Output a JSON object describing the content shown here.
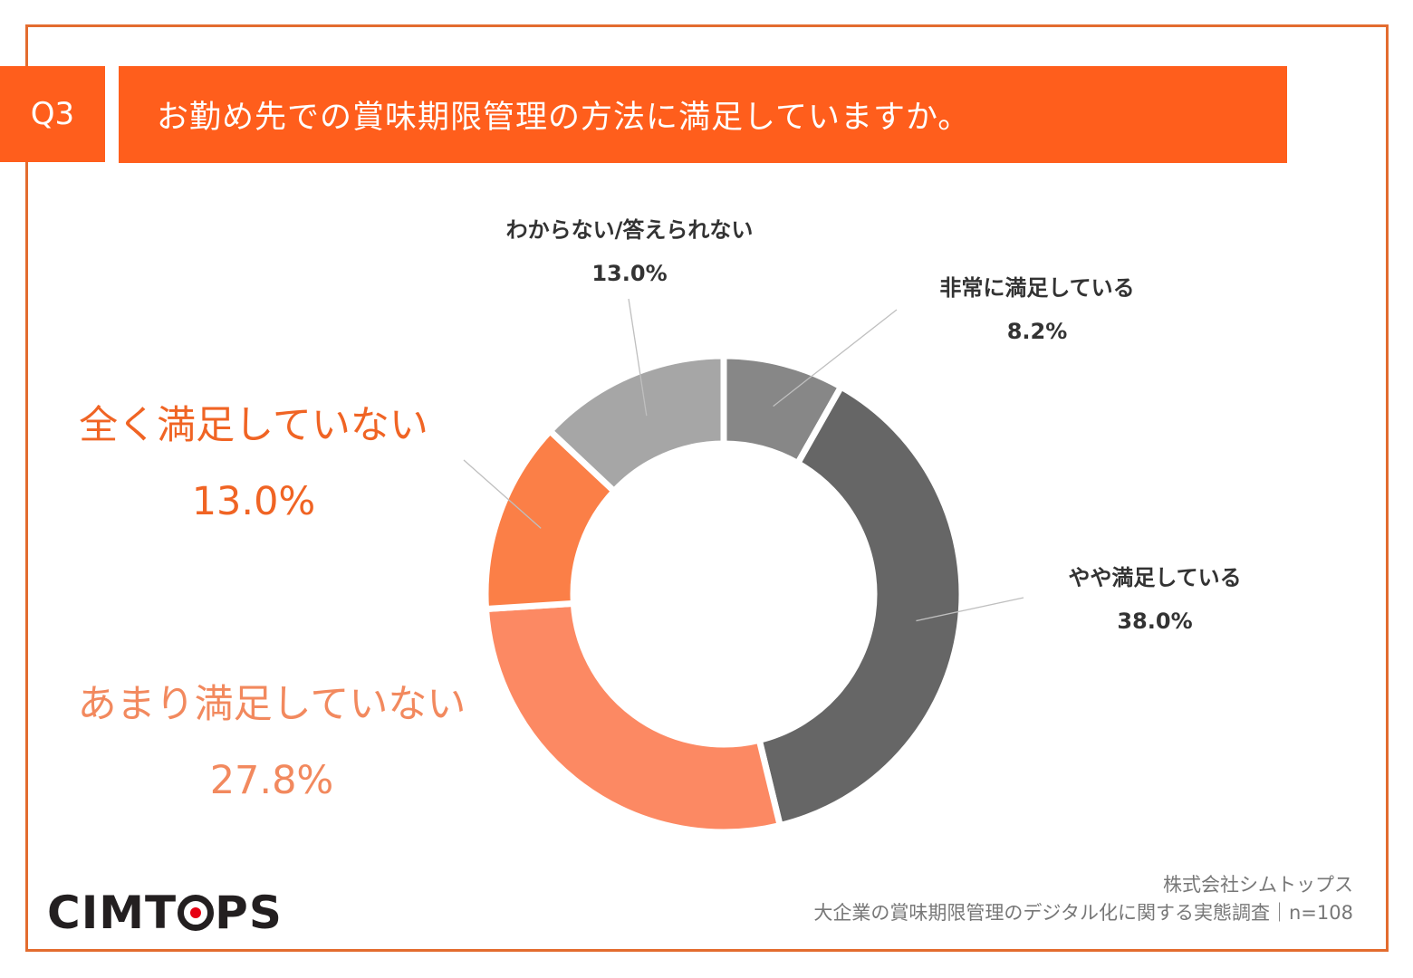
{
  "header": {
    "q_label": "Q3",
    "question": "お勤め先での賞味期限管理の方法に満足していますか。"
  },
  "colors": {
    "accent": "#ff5e1c",
    "frame": "#e36c2f",
    "gap": "#ffffff"
  },
  "chart_data": {
    "type": "pie",
    "donut": true,
    "start_angle_deg": 0,
    "direction": "clockwise",
    "series": [
      {
        "name": "非常に満足している",
        "value": 8.2,
        "label": "8.2%",
        "color": "#878787"
      },
      {
        "name": "やや満足している",
        "value": 38.0,
        "label": "38.0%",
        "color": "#666666"
      },
      {
        "name": "あまり満足していない",
        "value": 27.8,
        "label": "27.8%",
        "color": "#fc8963"
      },
      {
        "name": "全く満足していない",
        "value": 13.0,
        "label": "13.0%",
        "color": "#fb7f47"
      },
      {
        "name": "わからない/答えられない",
        "value": 13.0,
        "label": "13.0%",
        "color": "#a6a6a6"
      }
    ]
  },
  "logo": "CIMTOPS",
  "footer": {
    "company": "株式会社シムトップス",
    "survey": "大企業の賞味期限管理のデジタル化に関する実態調査｜n=108"
  }
}
